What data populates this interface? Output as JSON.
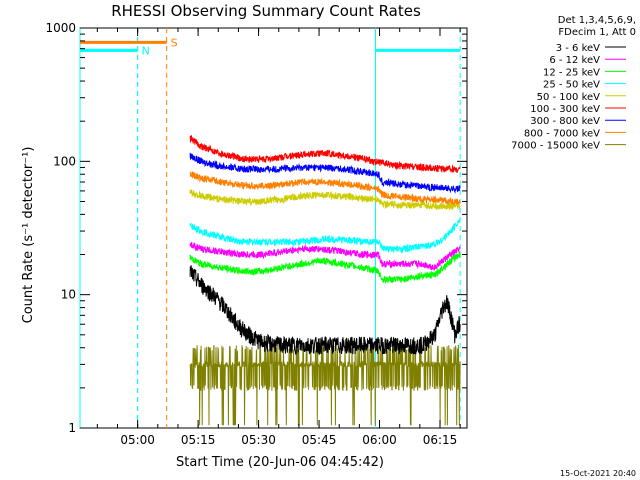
{
  "chart_data": {
    "type": "line",
    "title": "RHESSI Observing Summary Count Rates",
    "xlabel": "Start Time (20-Jun-06 04:45:42)",
    "ylabel": "Count Rate (s⁻¹ detector⁻¹)",
    "yscale": "log",
    "ylim": [
      1,
      1000
    ],
    "xlim_minutes": [
      0,
      96
    ],
    "x_tick_labels": [
      "05:00",
      "05:15",
      "05:30",
      "05:45",
      "06:00",
      "06:15"
    ],
    "x_tick_minutes": [
      14.3,
      29.3,
      44.3,
      59.3,
      74.3,
      89.3
    ],
    "y_tick_labels": [
      "1",
      "10",
      "100",
      "1000"
    ],
    "y_tick_values": [
      1,
      10,
      100,
      1000
    ],
    "data_start_minute": 27.3,
    "data_end_minute": 94.3,
    "legend_header": [
      "Det 1,3,4,5,6,9,",
      "FDecim 1, Att 0"
    ],
    "legend_position": "right",
    "series": [
      {
        "name": "3 - 6 keV",
        "color": "#000000",
        "x": [
          27.3,
          30,
          33,
          36,
          39,
          42,
          45,
          50,
          55,
          60,
          65,
          70,
          75,
          80,
          85,
          88,
          90,
          91,
          92,
          93,
          94
        ],
        "y": [
          15,
          12,
          10,
          8,
          6,
          5,
          4.4,
          4.2,
          4.2,
          4.2,
          4.2,
          4.2,
          4.2,
          4.2,
          4.2,
          5,
          8,
          9,
          7,
          5,
          6
        ]
      },
      {
        "name": "6 - 12 keV",
        "color": "#ff00ff",
        "x": [
          27.3,
          30,
          35,
          40,
          45,
          50,
          55,
          60,
          65,
          70,
          74,
          75,
          80,
          85,
          88,
          90,
          92,
          94
        ],
        "y": [
          24,
          22,
          21,
          20,
          20,
          21,
          22,
          22,
          21,
          20,
          20,
          17,
          17,
          17,
          16,
          18,
          20,
          22
        ]
      },
      {
        "name": "12 - 25 keV",
        "color": "#00ff00",
        "x": [
          27.3,
          30,
          35,
          40,
          45,
          50,
          55,
          60,
          65,
          70,
          74,
          75,
          80,
          85,
          88,
          90,
          92,
          94
        ],
        "y": [
          19,
          17,
          16,
          15,
          15,
          16,
          17,
          18,
          17,
          16,
          15,
          13,
          13,
          14,
          14,
          16,
          18,
          20
        ]
      },
      {
        "name": "25 - 50 keV",
        "color": "#00ffff",
        "x": [
          27.3,
          30,
          35,
          40,
          45,
          50,
          55,
          60,
          65,
          70,
          74,
          75,
          80,
          85,
          88,
          90,
          92,
          94
        ],
        "y": [
          33,
          30,
          27,
          25,
          25,
          25,
          25,
          26,
          26,
          25,
          25,
          22,
          22,
          23,
          24,
          26,
          30,
          36
        ]
      },
      {
        "name": "50 - 100 keV",
        "color": "#cccc00",
        "x": [
          27.3,
          30,
          35,
          40,
          45,
          50,
          55,
          60,
          65,
          70,
          74,
          75,
          80,
          85,
          90,
          94
        ],
        "y": [
          58,
          55,
          52,
          50,
          50,
          52,
          55,
          56,
          55,
          53,
          52,
          48,
          47,
          47,
          46,
          46
        ]
      },
      {
        "name": "100 - 300 keV",
        "color": "#ff0000",
        "x": [
          27.3,
          30,
          35,
          40,
          45,
          50,
          55,
          60,
          65,
          70,
          75,
          80,
          85,
          90,
          94
        ],
        "y": [
          150,
          130,
          115,
          105,
          103,
          107,
          113,
          115,
          112,
          105,
          97,
          92,
          90,
          88,
          87
        ]
      },
      {
        "name": "300 - 800 keV",
        "color": "#0000ff",
        "x": [
          27.3,
          30,
          35,
          40,
          45,
          50,
          55,
          60,
          65,
          70,
          74,
          75,
          80,
          85,
          90,
          94
        ],
        "y": [
          110,
          100,
          92,
          88,
          87,
          88,
          90,
          90,
          88,
          84,
          80,
          70,
          67,
          65,
          63,
          62
        ]
      },
      {
        "name": "800 - 7000 keV",
        "color": "#ff8000",
        "x": [
          27.3,
          30,
          35,
          40,
          45,
          50,
          55,
          60,
          65,
          70,
          74,
          75,
          80,
          85,
          90,
          94
        ],
        "y": [
          80,
          75,
          70,
          66,
          65,
          67,
          70,
          70,
          68,
          65,
          62,
          56,
          54,
          52,
          51,
          50
        ]
      },
      {
        "name": "7000 - 15000 keV",
        "color": "#808000",
        "x": [
          27.3,
          30,
          35,
          40,
          45,
          50,
          55,
          60,
          65,
          70,
          75,
          80,
          85,
          90,
          94
        ],
        "y": [
          3.5,
          3.0,
          2.9,
          2.8,
          2.9,
          3.0,
          3.0,
          3.0,
          3.0,
          3.0,
          3.0,
          3.0,
          3.0,
          3.0,
          3.0
        ]
      }
    ],
    "annotations": [
      {
        "label": "N",
        "color": "#00ffff",
        "flag_start_minute": 0,
        "flag_end_minute": 14.3,
        "level": 680,
        "dashed_end_minute": 14.3
      },
      {
        "label": "S",
        "color": "#ff8000",
        "flag_start_minute": 0,
        "flag_end_minute": 21.5,
        "level": 780,
        "dashed_end_minute": 21.5
      }
    ],
    "night_intervals_minutes": [
      [
        0,
        14.3
      ],
      [
        73.3,
        94.3
      ]
    ],
    "timestamp": "15-Oct-2021 20:40"
  }
}
